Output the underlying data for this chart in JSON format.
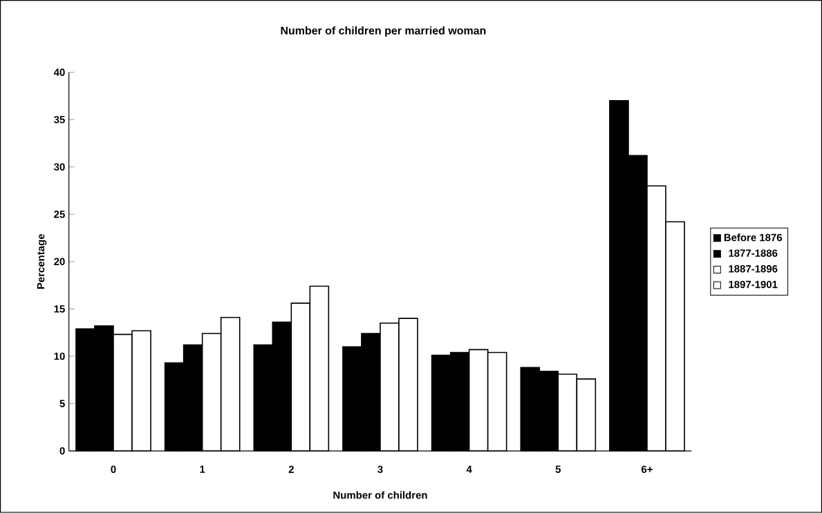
{
  "chart_data": {
    "type": "bar",
    "title": "Number of children per married woman",
    "xlabel": "Number of children",
    "ylabel": "Percentage",
    "categories": [
      "0",
      "1",
      "2",
      "3",
      "4",
      "5",
      "6+"
    ],
    "series": [
      {
        "name": "Before 1876",
        "color": "#000000",
        "values": [
          12.9,
          9.3,
          11.2,
          11.0,
          10.1,
          8.8,
          37.0
        ]
      },
      {
        "name": "1877-1886",
        "color": "#000000",
        "values": [
          13.2,
          11.2,
          13.6,
          12.4,
          10.4,
          8.4,
          31.2
        ]
      },
      {
        "name": "1887-1896",
        "color": "#ffffff",
        "values": [
          12.3,
          12.4,
          15.6,
          13.5,
          10.7,
          8.1,
          28.0
        ]
      },
      {
        "name": "1897-1901",
        "color": "#ffffff",
        "values": [
          12.7,
          14.1,
          17.4,
          14.0,
          10.4,
          7.6,
          24.2
        ]
      }
    ],
    "ylim": [
      0,
      40
    ],
    "yticks": [
      0,
      5,
      10,
      15,
      20,
      25,
      30,
      35,
      40
    ],
    "grid": false,
    "legend": "right"
  }
}
